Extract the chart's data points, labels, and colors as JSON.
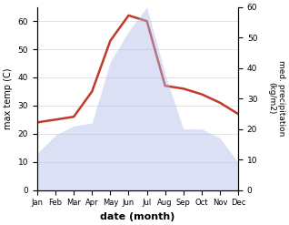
{
  "months": [
    "Jan",
    "Feb",
    "Mar",
    "Apr",
    "May",
    "Jun",
    "Jul",
    "Aug",
    "Sep",
    "Oct",
    "Nov",
    "Dec"
  ],
  "temperature": [
    24,
    25,
    26,
    35,
    53,
    62,
    60,
    37,
    36,
    34,
    31,
    27
  ],
  "precipitation": [
    12,
    18,
    21,
    22,
    42,
    52,
    60,
    38,
    20,
    20,
    17,
    9
  ],
  "temp_color": "#c0392b",
  "precip_color": "#b0bce8",
  "ylabel_left": "max temp (C)",
  "ylabel_right": "med. precipitation\n(kg/m2)",
  "xlabel": "date (month)",
  "ylim_left": [
    0,
    65
  ],
  "ylim_right": [
    0,
    60
  ],
  "yticks_left": [
    0,
    10,
    20,
    30,
    40,
    50,
    60
  ],
  "yticks_right": [
    0,
    10,
    20,
    30,
    40,
    50,
    60
  ],
  "background_color": "#ffffff"
}
